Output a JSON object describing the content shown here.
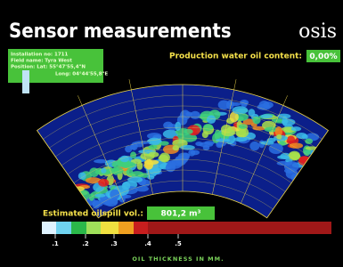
{
  "header": {
    "title": "Sensor measurements",
    "logo": "osis"
  },
  "info": {
    "lines": [
      "Installation no: 1711",
      "Field name: Tyra West",
      "Position:  Lat:  55°47'55,4\"N",
      "Long: 04°44'55,8\"E"
    ]
  },
  "oil_content": {
    "label": "Production water oil content:",
    "value": "0,00%"
  },
  "oilspill": {
    "label": "Estimated oilspill vol.:",
    "value": "801,2 m³"
  },
  "scale": {
    "ticks": [
      ".1",
      ".2",
      ".3",
      ".4",
      ".5"
    ],
    "caption": "OIL THICKNESS IN MM."
  }
}
